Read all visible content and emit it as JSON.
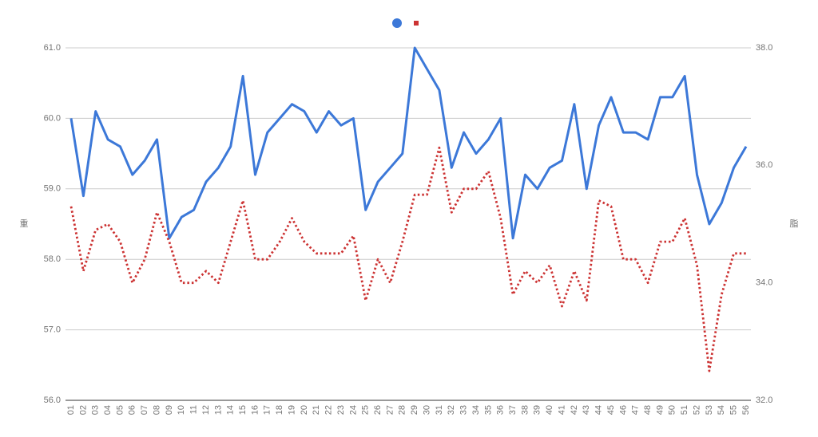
{
  "chart_data": {
    "type": "line",
    "y_label": "重",
    "y2_label": "脂",
    "categories": [
      "01",
      "02",
      "03",
      "04",
      "05",
      "06",
      "07",
      "08",
      "09",
      "10",
      "11",
      "12",
      "13",
      "14",
      "15",
      "16",
      "17",
      "18",
      "19",
      "20",
      "21",
      "22",
      "23",
      "24",
      "25",
      "26",
      "27",
      "28",
      "29",
      "30",
      "31",
      "32",
      "33",
      "34",
      "35",
      "36",
      "37",
      "38",
      "39",
      "40",
      "41",
      "42",
      "43",
      "44",
      "45",
      "46",
      "47",
      "48",
      "49",
      "50",
      "51",
      "52",
      "53",
      "54",
      "55",
      "56"
    ],
    "series": [
      {
        "color": "#3c78d8",
        "values": [
          60.0,
          58.9,
          60.1,
          59.7,
          59.6,
          59.2,
          59.4,
          59.7,
          58.3,
          58.6,
          58.7,
          59.1,
          59.3,
          59.6,
          60.6,
          59.2,
          59.8,
          60.0,
          60.2,
          60.1,
          59.8,
          60.1,
          59.9,
          60.0,
          58.7,
          59.1,
          59.3,
          59.5,
          61.0,
          60.7,
          60.4,
          59.3,
          59.8,
          59.5,
          59.7,
          60.0,
          58.3,
          59.2,
          59.0,
          59.3,
          59.4,
          60.2,
          59.0,
          59.9,
          60.3,
          59.8,
          59.8,
          59.7,
          60.3,
          60.3,
          60.6,
          59.2,
          58.5,
          58.8,
          59.3,
          59.6
        ]
      },
      {
        "color": "#cc3333",
        "axis": "y2",
        "dashed": true,
        "values": [
          35.3,
          34.2,
          34.9,
          35.0,
          34.7,
          34.0,
          34.4,
          35.2,
          34.7,
          34.0,
          34.0,
          34.2,
          34.0,
          34.7,
          35.4,
          34.4,
          34.4,
          34.7,
          35.1,
          34.7,
          34.5,
          34.5,
          34.5,
          34.8,
          33.7,
          34.4,
          34.0,
          34.7,
          35.5,
          35.5,
          36.3,
          35.2,
          35.6,
          35.6,
          35.9,
          35.1,
          33.8,
          34.2,
          34.0,
          34.3,
          33.6,
          34.2,
          33.7,
          35.4,
          35.3,
          34.4,
          34.4,
          34.0,
          34.7,
          34.7,
          35.1,
          34.3,
          32.5,
          33.8,
          34.5,
          34.5
        ]
      }
    ],
    "ylim": [
      56,
      61
    ],
    "yticks": [
      {
        "value": 56,
        "label": "56.0"
      },
      {
        "value": 57,
        "label": "57.0"
      },
      {
        "value": 58,
        "label": "58.0"
      },
      {
        "value": 59,
        "label": "59.0"
      },
      {
        "value": 60,
        "label": "60.0"
      },
      {
        "value": 61,
        "label": "61.0"
      }
    ],
    "y2lim": [
      32,
      38
    ],
    "y2ticks": [
      {
        "value": 32,
        "label": "32.0"
      },
      {
        "value": 34,
        "label": "34.0"
      },
      {
        "value": 36,
        "label": "36.0"
      },
      {
        "value": 38,
        "label": "38.0"
      }
    ],
    "grid": true
  }
}
